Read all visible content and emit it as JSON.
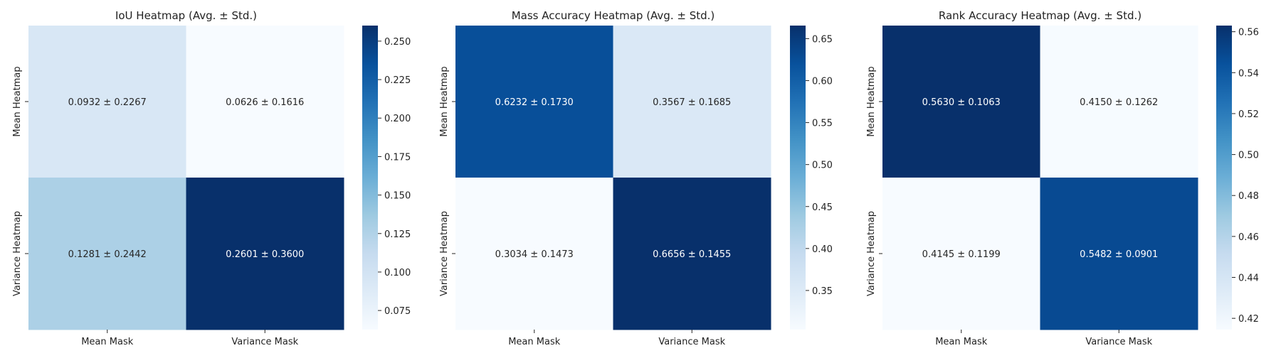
{
  "colormap": {
    "name": "Blues",
    "stops": [
      "#f7fbff",
      "#deebf7",
      "#c6dbef",
      "#9ecae1",
      "#6baed6",
      "#4292c6",
      "#2171b5",
      "#08519c",
      "#08306b"
    ]
  },
  "chart_data": [
    {
      "type": "heatmap",
      "title": "IoU Heatmap (Avg. ± Std.)",
      "xlabels": [
        "Mean Mask",
        "Variance Mask"
      ],
      "ylabels": [
        "Mean Heatmap",
        "Variance Heatmap"
      ],
      "values": [
        [
          0.0932,
          0.0626
        ],
        [
          0.1281,
          0.2601
        ]
      ],
      "annotations": [
        [
          "0.0932 ± 0.2267",
          "0.0626 ± 0.1616"
        ],
        [
          "0.1281 ± 0.2442",
          "0.2601 ± 0.3600"
        ]
      ],
      "vlim": [
        0.0626,
        0.2601
      ],
      "colorbar_ticks": [
        "0.075",
        "0.100",
        "0.125",
        "0.150",
        "0.175",
        "0.200",
        "0.225",
        "0.250"
      ],
      "colorbar_tick_values": [
        0.075,
        0.1,
        0.125,
        0.15,
        0.175,
        0.2,
        0.225,
        0.25
      ]
    },
    {
      "type": "heatmap",
      "title": "Mass Accuracy Heatmap (Avg. ± Std.)",
      "xlabels": [
        "Mean Mask",
        "Variance Mask"
      ],
      "ylabels": [
        "Mean Heatmap",
        "Variance Heatmap"
      ],
      "values": [
        [
          0.6232,
          0.3567
        ],
        [
          0.3034,
          0.6656
        ]
      ],
      "annotations": [
        [
          "0.6232 ± 0.1730",
          "0.3567 ± 0.1685"
        ],
        [
          "0.3034 ± 0.1473",
          "0.6656 ± 0.1455"
        ]
      ],
      "vlim": [
        0.3034,
        0.6656
      ],
      "colorbar_ticks": [
        "0.35",
        "0.40",
        "0.45",
        "0.50",
        "0.55",
        "0.60",
        "0.65"
      ],
      "colorbar_tick_values": [
        0.35,
        0.4,
        0.45,
        0.5,
        0.55,
        0.6,
        0.65
      ]
    },
    {
      "type": "heatmap",
      "title": "Rank Accuracy Heatmap (Avg. ± Std.)",
      "xlabels": [
        "Mean Mask",
        "Variance Mask"
      ],
      "ylabels": [
        "Mean Heatmap",
        "Variance Heatmap"
      ],
      "values": [
        [
          0.563,
          0.415
        ],
        [
          0.4145,
          0.5482
        ]
      ],
      "annotations": [
        [
          "0.5630 ± 0.1063",
          "0.4150 ± 0.1262"
        ],
        [
          "0.4145 ± 0.1199",
          "0.5482 ± 0.0901"
        ]
      ],
      "vlim": [
        0.4145,
        0.563
      ],
      "colorbar_ticks": [
        "0.42",
        "0.44",
        "0.46",
        "0.48",
        "0.50",
        "0.52",
        "0.54",
        "0.56"
      ],
      "colorbar_tick_values": [
        0.42,
        0.44,
        0.46,
        0.48,
        0.5,
        0.52,
        0.54,
        0.56
      ]
    }
  ]
}
